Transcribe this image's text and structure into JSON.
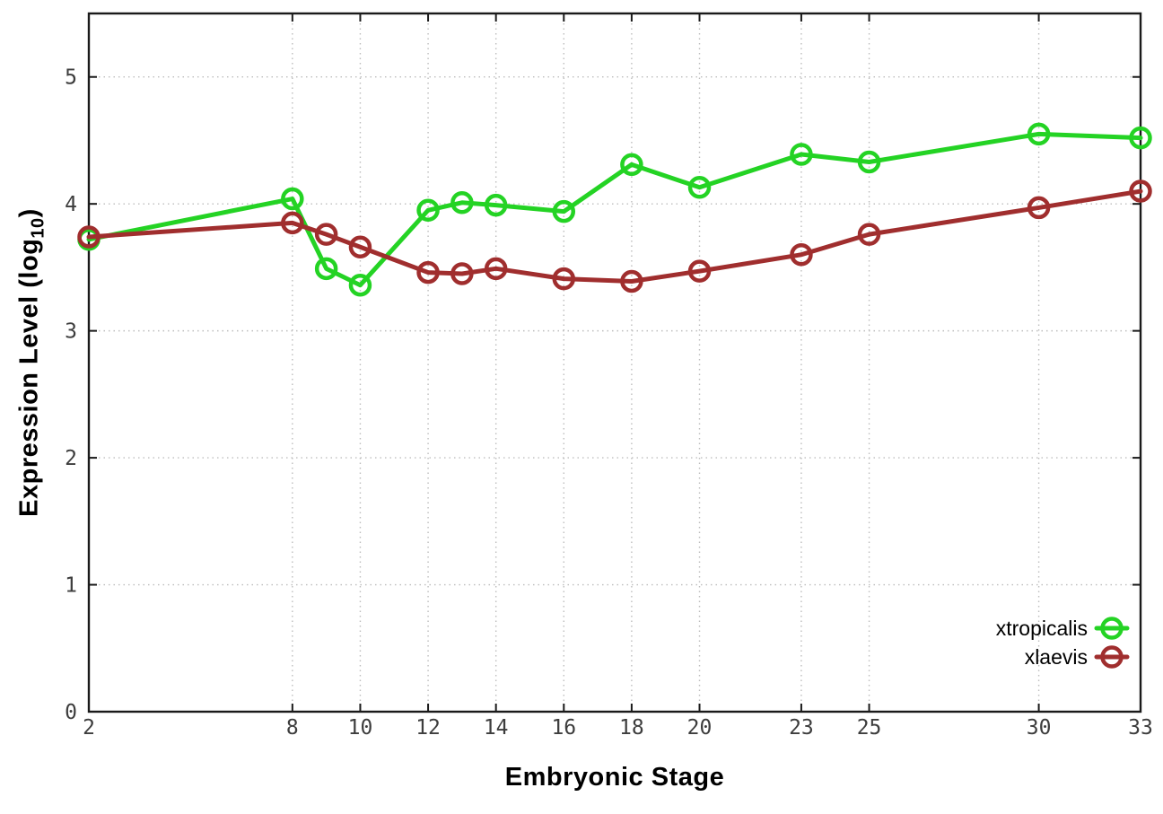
{
  "figure": {
    "background": "#ffffff",
    "xlabel": "Embryonic Stage",
    "ylabel_main": "Expression Level (log",
    "ylabel_sub": "10",
    "ylabel_close": ")"
  },
  "chart_data": {
    "type": "line",
    "title": "",
    "xlabel": "Embryonic Stage",
    "ylabel": "Expression Level (log10)",
    "x": [
      2,
      8,
      9,
      10,
      12,
      13,
      14,
      16,
      18,
      20,
      23,
      25,
      30,
      33
    ],
    "series": [
      {
        "name": "xtropicalis",
        "color": "#24d324",
        "values": [
          3.72,
          4.04,
          3.49,
          3.36,
          3.95,
          4.01,
          3.99,
          3.94,
          4.31,
          4.13,
          4.39,
          4.33,
          4.55,
          4.52
        ]
      },
      {
        "name": "xlaevis",
        "color": "#a02e2e",
        "values": [
          3.74,
          3.85,
          3.76,
          3.66,
          3.46,
          3.45,
          3.49,
          3.41,
          3.39,
          3.47,
          3.6,
          3.76,
          3.97,
          4.1
        ]
      }
    ],
    "xticks": [
      2,
      8,
      10,
      12,
      14,
      16,
      18,
      20,
      23,
      25,
      30,
      33
    ],
    "yticks": [
      0,
      1,
      2,
      3,
      4,
      5
    ],
    "xlim": [
      2,
      33
    ],
    "ylim": [
      0,
      5.5
    ],
    "grid": true,
    "grid_style": "dotted",
    "grid_color": "#bdbdbd",
    "border_color": "#1a1a1a",
    "tick_label_color": "#3d3d3d",
    "marker": "open-circle",
    "legend_position": "bottom-right",
    "legend_labels": [
      "xtropicalis",
      "xlaevis"
    ]
  }
}
